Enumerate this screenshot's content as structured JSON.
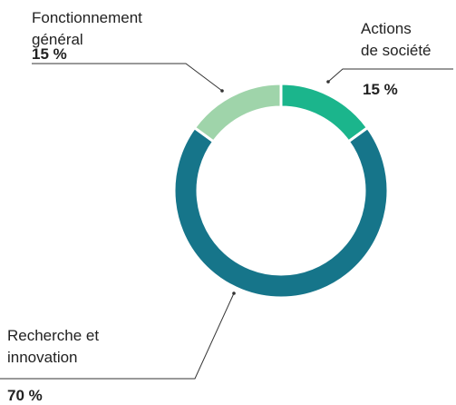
{
  "chart_data": {
    "type": "donut",
    "categories": [
      "Actions\nde société",
      "Recherche et\ninnovation",
      "Fonctionnement\ngénéral"
    ],
    "values": [
      15,
      70,
      15
    ],
    "value_labels": [
      "15 %",
      "70 %",
      "15 %"
    ],
    "colors": [
      "#1bb58c",
      "#16758a",
      "#9fd4aa"
    ]
  }
}
